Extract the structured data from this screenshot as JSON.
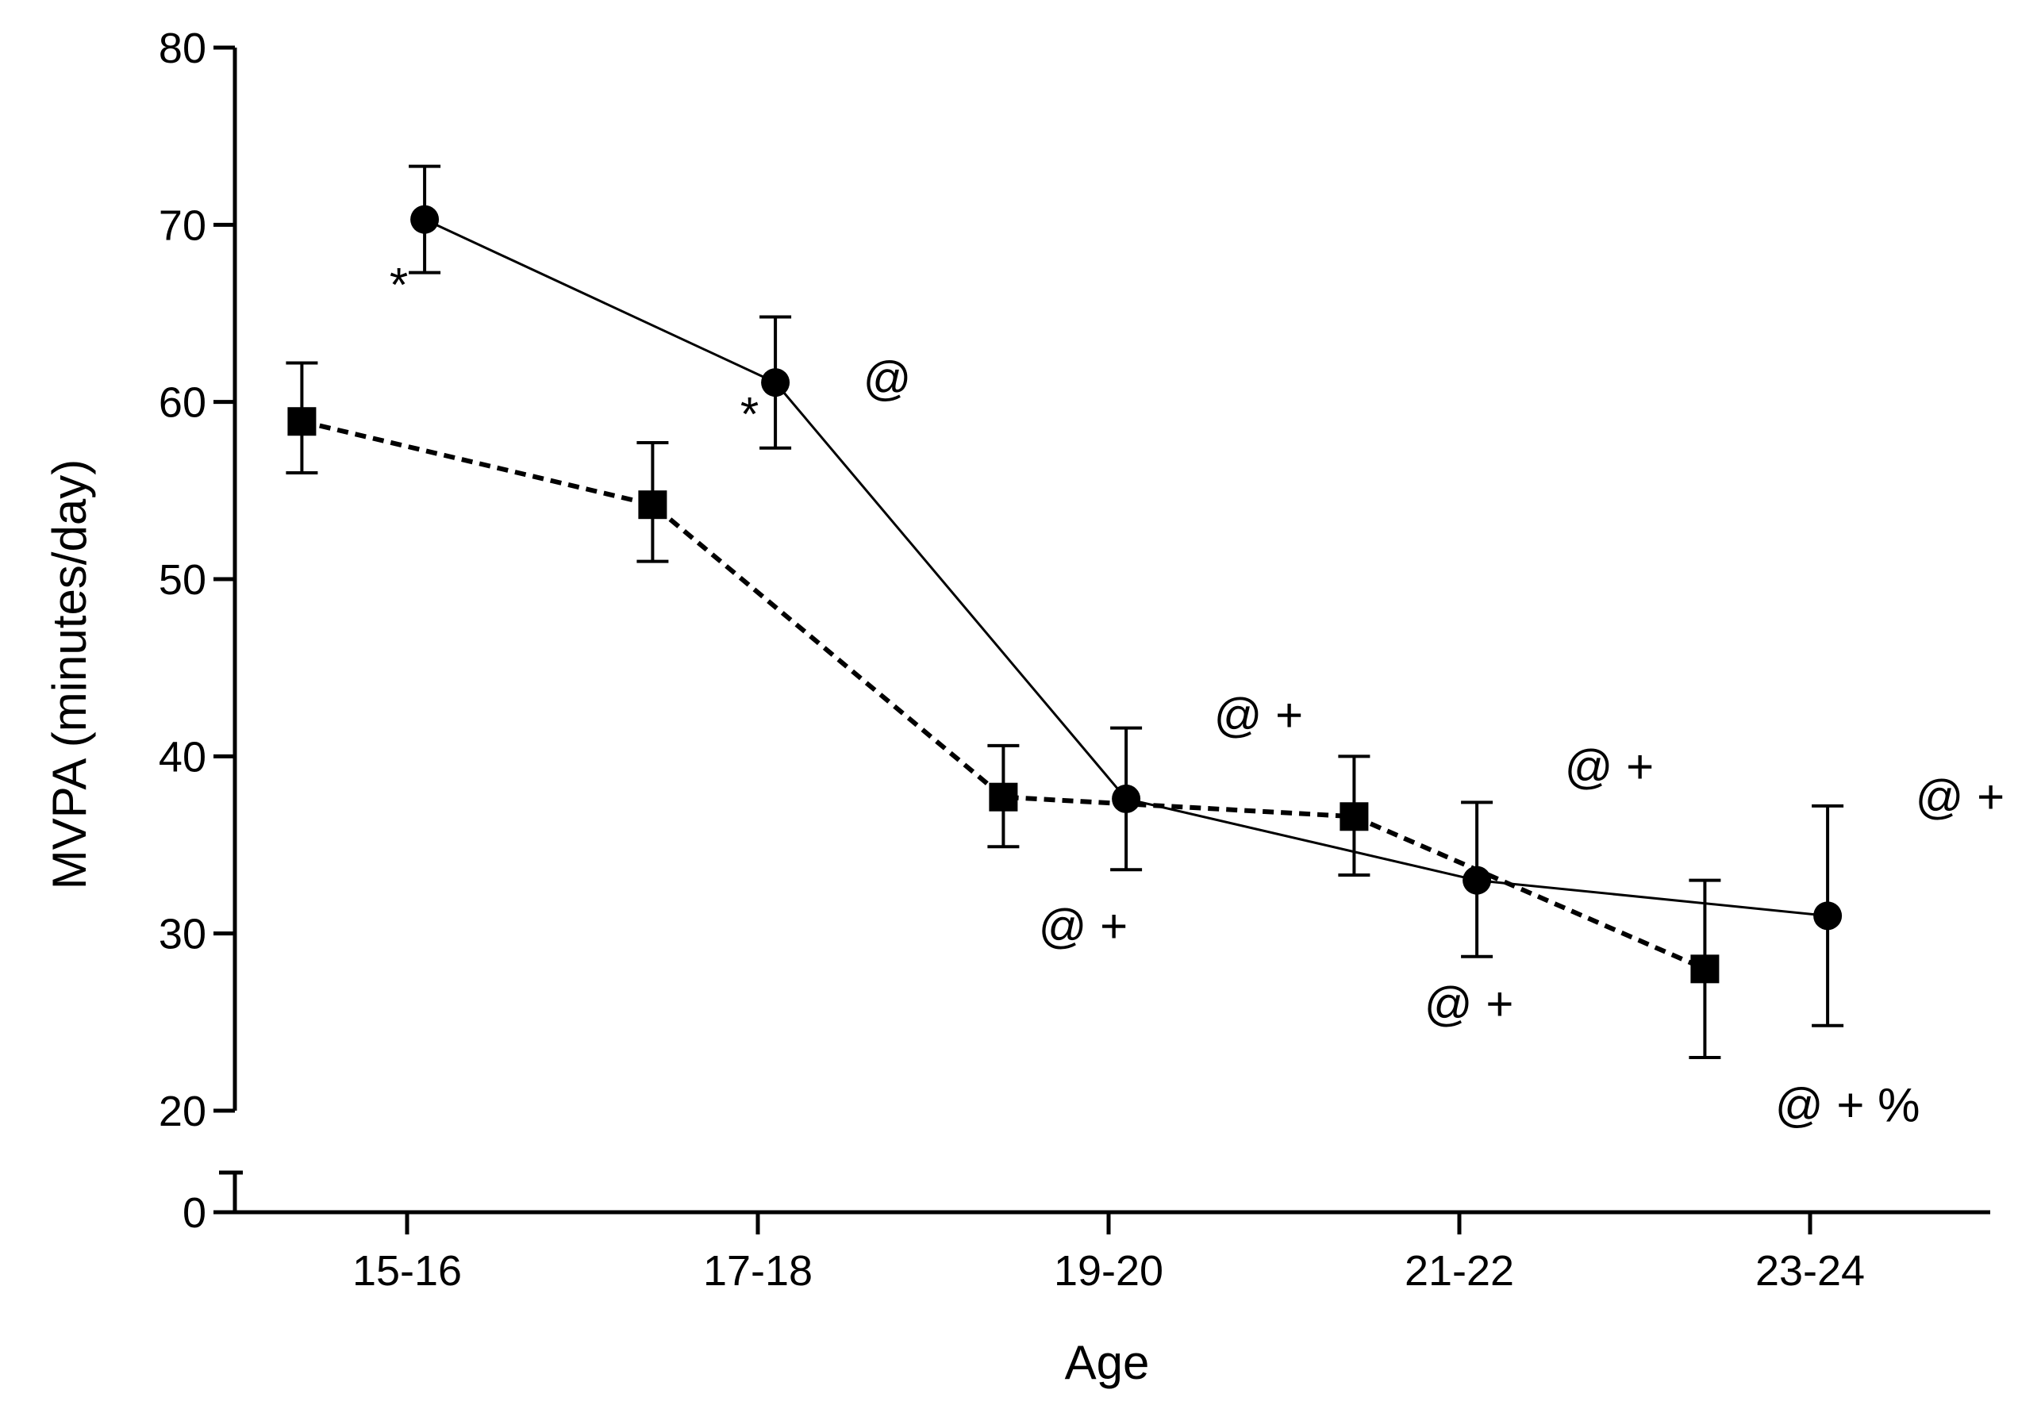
{
  "chart_data": {
    "type": "line",
    "title": "",
    "xlabel": "Age",
    "ylabel": "MVPA  (minutes/day)",
    "categories": [
      "15-16",
      "17-18",
      "19-20",
      "21-22",
      "23-24"
    ],
    "yticks": [
      20,
      30,
      40,
      50,
      60,
      70,
      80
    ],
    "ybreak_tick": 0,
    "ylim": [
      20,
      80
    ],
    "grid": false,
    "legend": "none",
    "series": [
      {
        "name": "circles (solid line)",
        "marker": "circle",
        "line": "solid",
        "offset": 0.05,
        "values": [
          70.3,
          61.1,
          37.6,
          33.0,
          31.0
        ],
        "err_low": [
          67.3,
          57.4,
          33.6,
          28.7,
          24.8
        ],
        "err_high": [
          73.3,
          64.8,
          41.6,
          37.4,
          37.2
        ]
      },
      {
        "name": "squares (dashed line)",
        "marker": "square",
        "line": "dashed",
        "offset": -0.3,
        "values": [
          58.9,
          54.2,
          37.7,
          36.6,
          28.0
        ],
        "err_low": [
          56.0,
          51.0,
          34.9,
          33.3,
          23.0
        ],
        "err_high": [
          62.2,
          57.7,
          40.6,
          40.0,
          33.0
        ]
      }
    ],
    "annotations": [
      {
        "text": "*",
        "x": -0.05,
        "y": 65.7
      },
      {
        "text": "*",
        "x": 0.95,
        "y": 58.4
      },
      {
        "text": "@",
        "x": 1.3,
        "y": 60.4
      },
      {
        "text": "@ +",
        "x": 2.3,
        "y": 41.4
      },
      {
        "text": "@  +",
        "x": 1.8,
        "y": 29.5
      },
      {
        "text": "@ +",
        "x": 3.3,
        "y": 38.5
      },
      {
        "text": "@ +",
        "x": 2.9,
        "y": 25.1
      },
      {
        "text": "@ +",
        "x": 4.3,
        "y": 36.8
      },
      {
        "text": "@  + %",
        "x": 3.9,
        "y": 19.4
      }
    ]
  }
}
